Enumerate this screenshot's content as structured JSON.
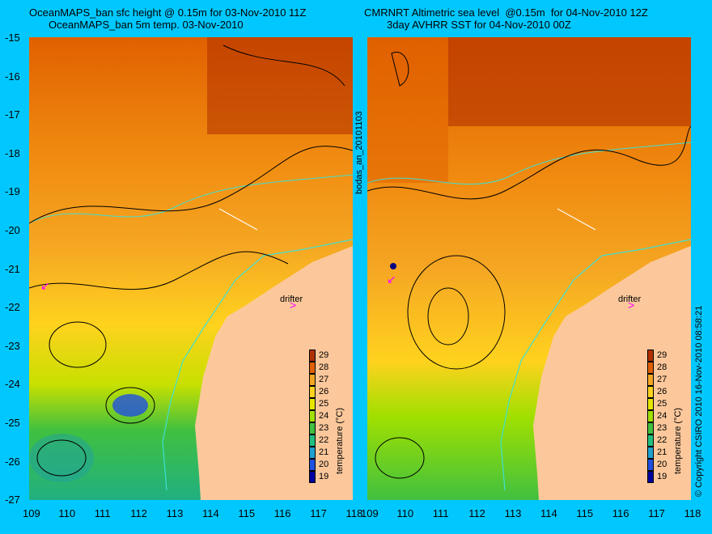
{
  "left_panel": {
    "title_line1": "OceanMAPS_ban sfc height @ 0.15m for 03-Nov-2010 11Z",
    "title_line2": "OceanMAPS_ban 5m temp. 03-Nov-2010",
    "drifter_label": "drifter",
    "colorbar_title": "temperature (°C)"
  },
  "right_panel": {
    "title_line1": "CMRNRT Altimetric sea level  @0.15m  for 04-Nov-2010 12Z",
    "title_line2": "3day AVHRR SST for 04-Nov-2010 00Z",
    "drifter_label": "drifter",
    "colorbar_title": "temperature (°C)"
  },
  "side_label_middle": "bodas_an_20101103",
  "side_label_right": "© Copyright CSIRO 2010   16-Nov-2010 08:58:21",
  "lat_ticks": [
    "-15",
    "-16",
    "-17",
    "-18",
    "-19",
    "-20",
    "-21",
    "-22",
    "-23",
    "-24",
    "-25",
    "-26",
    "-27"
  ],
  "lon_ticks": [
    "109",
    "110",
    "111",
    "112",
    "113",
    "114",
    "115",
    "116",
    "117",
    "118"
  ],
  "colorbar": {
    "labels": [
      "29",
      "28",
      "27",
      "26",
      "25",
      "24",
      "23",
      "22",
      "21",
      "20",
      "19"
    ],
    "colors": [
      "#b03000",
      "#e06000",
      "#f5a623",
      "#ffd21e",
      "#e6e600",
      "#a0e000",
      "#40c040",
      "#20c080",
      "#20a0d0",
      "#2050e0",
      "#0000a0"
    ]
  },
  "colors": {
    "background": "#00c8ff",
    "land": "#fcc89b",
    "drifter": "#ff00ff",
    "coast_contour": "#40e0d0"
  }
}
